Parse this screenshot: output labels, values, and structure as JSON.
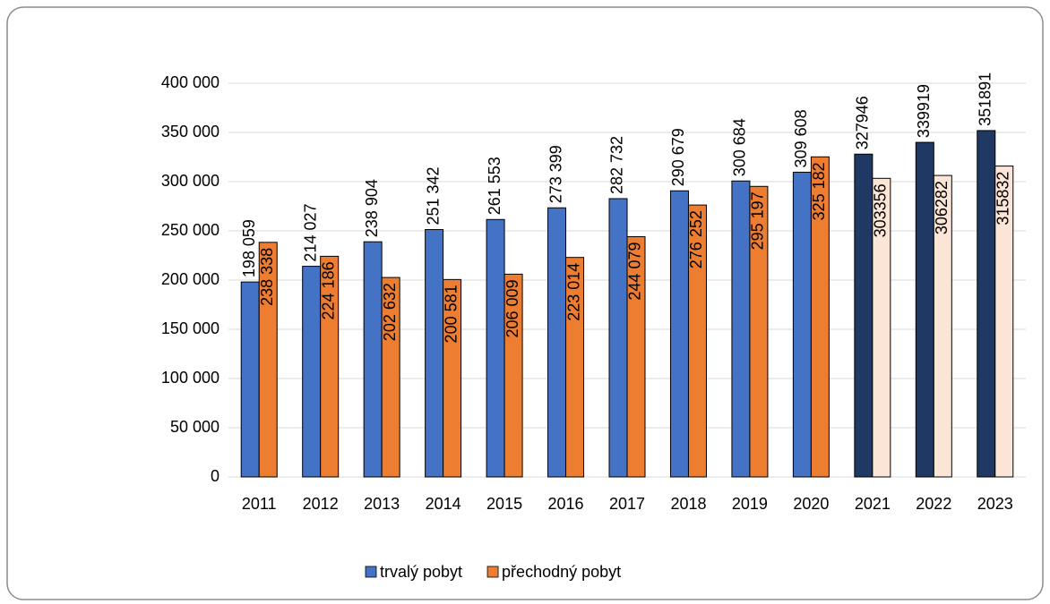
{
  "chart_data": {
    "type": "bar",
    "categories": [
      "2011",
      "2012",
      "2013",
      "2014",
      "2015",
      "2016",
      "2017",
      "2018",
      "2019",
      "2020",
      "2021",
      "2022",
      "2023"
    ],
    "series": [
      {
        "name": "trvalý pobyt",
        "color": "#4472c4",
        "colors": [
          "#4472c4",
          "#4472c4",
          "#4472c4",
          "#4472c4",
          "#4472c4",
          "#4472c4",
          "#4472c4",
          "#4472c4",
          "#4472c4",
          "#4472c4",
          "#203864",
          "#203864",
          "#203864"
        ],
        "values": [
          198059,
          214027,
          238904,
          251342,
          261553,
          273399,
          282732,
          290679,
          300684,
          309608,
          327946,
          339919,
          351891
        ],
        "value_labels": [
          "198 059",
          "214 027",
          "238 904",
          "251 342",
          "261 553",
          "273 399",
          "282 732",
          "290 679",
          "300 684",
          "309 608",
          "327946",
          "339919",
          "351891"
        ]
      },
      {
        "name": "přechodný pobyt",
        "color": "#ed7d31",
        "colors": [
          "#ed7d31",
          "#ed7d31",
          "#ed7d31",
          "#ed7d31",
          "#ed7d31",
          "#ed7d31",
          "#ed7d31",
          "#ed7d31",
          "#ed7d31",
          "#ed7d31",
          "#fbe5d6",
          "#fbe5d6",
          "#fbe5d6"
        ],
        "values": [
          238338,
          224186,
          202632,
          200581,
          206009,
          223014,
          244079,
          276252,
          295197,
          325182,
          303356,
          306282,
          315832
        ],
        "value_labels": [
          "238 338",
          "224 186",
          "202 632",
          "200 581",
          "206 009",
          "223 014",
          "244 079",
          "276 252",
          "295 197",
          "325 182",
          "303356",
          "306282",
          "315832"
        ]
      }
    ],
    "ylim": [
      0,
      400000
    ],
    "yticks": [
      0,
      {
        "value": 50000,
        "label": "50 000"
      },
      {
        "value": 100000,
        "label": "100 000"
      },
      {
        "value": 150000,
        "label": "150 000"
      },
      {
        "value": 200000,
        "label": "200 000"
      },
      {
        "value": 250000,
        "label": "250 000"
      },
      {
        "value": 300000,
        "label": "300 000"
      },
      {
        "value": 350000,
        "label": "350 000"
      },
      {
        "value": 400000,
        "label": "400 000"
      }
    ],
    "grid": true,
    "legend": "bottom"
  }
}
